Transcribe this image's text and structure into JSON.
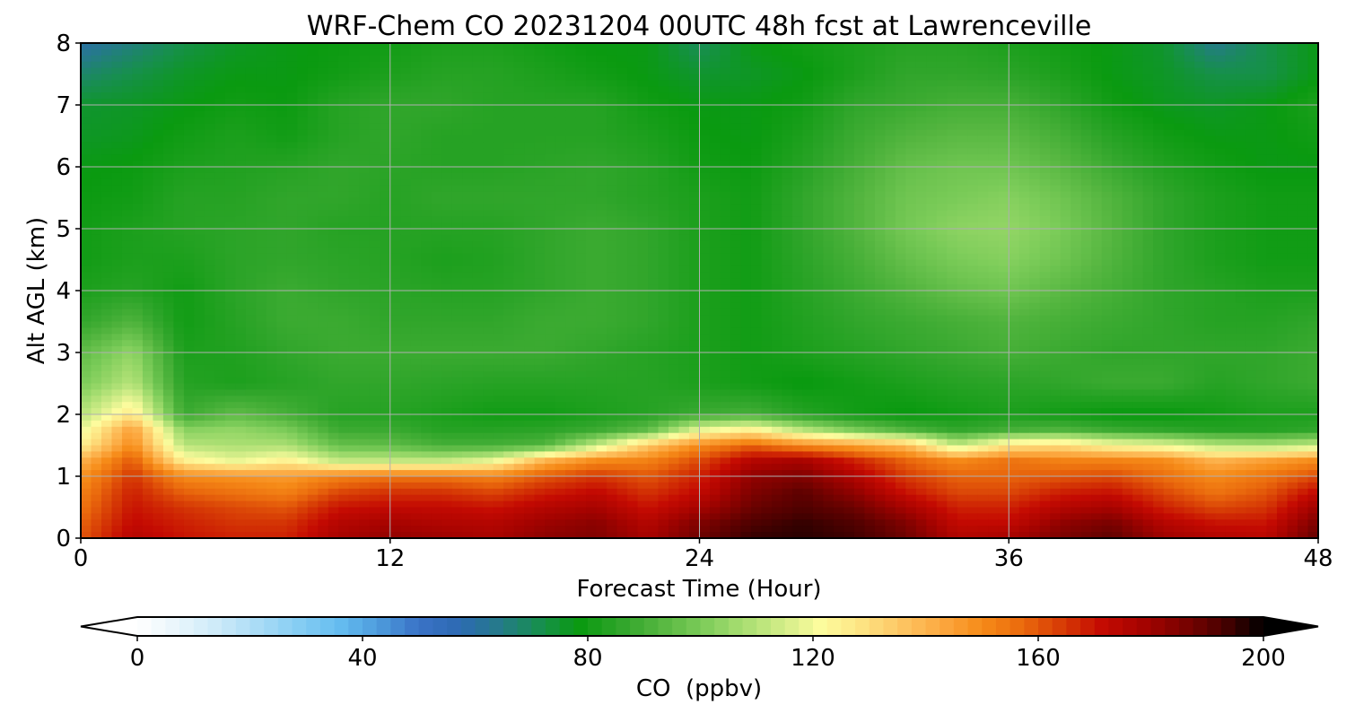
{
  "chart_data": {
    "type": "heatmap",
    "title": "WRF-Chem CO  20231204 00UTC 48h fcst at Lawrenceville",
    "xlabel": "Forecast Time (Hour)",
    "ylabel": "Alt AGL (km)",
    "xlim": [
      0,
      48
    ],
    "ylim": [
      0,
      8
    ],
    "x_ticks": [
      0,
      12,
      24,
      36,
      48
    ],
    "y_ticks": [
      0,
      1,
      2,
      3,
      4,
      5,
      6,
      7,
      8
    ],
    "grid": true,
    "x": [
      0,
      2,
      4,
      6,
      8,
      10,
      12,
      14,
      16,
      18,
      20,
      22,
      24,
      26,
      28,
      30,
      32,
      34,
      36,
      38,
      40,
      42,
      44,
      46,
      48
    ],
    "y": [
      0,
      0.25,
      0.5,
      0.75,
      1,
      1.25,
      1.5,
      1.75,
      2,
      2.5,
      3,
      3.5,
      4,
      4.5,
      5,
      5.5,
      6,
      6.5,
      7,
      7.5,
      8
    ],
    "z": [
      [
        160,
        175,
        170,
        168,
        168,
        178,
        182,
        180,
        178,
        183,
        185,
        178,
        188,
        195,
        196,
        194,
        188,
        176,
        178,
        186,
        190,
        180,
        176,
        174,
        190
      ],
      [
        158,
        172,
        168,
        165,
        165,
        175,
        178,
        176,
        175,
        180,
        183,
        175,
        185,
        192,
        195,
        192,
        185,
        172,
        172,
        182,
        186,
        175,
        170,
        170,
        186
      ],
      [
        155,
        170,
        165,
        162,
        160,
        170,
        172,
        172,
        170,
        175,
        178,
        170,
        178,
        188,
        192,
        188,
        178,
        168,
        168,
        175,
        178,
        168,
        162,
        165,
        180
      ],
      [
        152,
        168,
        158,
        155,
        152,
        162,
        165,
        165,
        162,
        168,
        172,
        165,
        172,
        185,
        190,
        182,
        170,
        162,
        162,
        168,
        170,
        162,
        155,
        160,
        172
      ],
      [
        148,
        165,
        150,
        148,
        146,
        152,
        155,
        155,
        152,
        160,
        165,
        160,
        168,
        182,
        185,
        176,
        164,
        158,
        158,
        160,
        162,
        156,
        150,
        155,
        162
      ],
      [
        140,
        160,
        125,
        118,
        125,
        112,
        112,
        112,
        118,
        140,
        150,
        152,
        162,
        175,
        178,
        168,
        158,
        150,
        155,
        152,
        152,
        150,
        140,
        145,
        150
      ],
      [
        125,
        150,
        110,
        108,
        108,
        96,
        95,
        90,
        90,
        92,
        112,
        135,
        150,
        158,
        150,
        145,
        138,
        112,
        128,
        130,
        122,
        118,
        110,
        108,
        112
      ],
      [
        118,
        145,
        102,
        104,
        100,
        88,
        88,
        84,
        84,
        85,
        88,
        95,
        118,
        125,
        110,
        100,
        92,
        86,
        90,
        92,
        88,
        86,
        84,
        84,
        86
      ],
      [
        110,
        128,
        88,
        95,
        90,
        84,
        84,
        82,
        80,
        80,
        82,
        84,
        88,
        90,
        84,
        80,
        78,
        80,
        82,
        80,
        78,
        78,
        80,
        82,
        82
      ],
      [
        100,
        110,
        84,
        82,
        84,
        86,
        86,
        85,
        84,
        84,
        84,
        84,
        82,
        80,
        78,
        80,
        82,
        84,
        85,
        86,
        88,
        88,
        84,
        86,
        88
      ],
      [
        95,
        104,
        82,
        83,
        86,
        88,
        88,
        88,
        88,
        88,
        86,
        84,
        82,
        80,
        82,
        84,
        86,
        88,
        90,
        88,
        86,
        86,
        86,
        86,
        88
      ],
      [
        86,
        92,
        80,
        84,
        88,
        88,
        86,
        86,
        86,
        88,
        88,
        86,
        82,
        80,
        83,
        86,
        88,
        90,
        92,
        90,
        88,
        86,
        84,
        84,
        86
      ],
      [
        82,
        84,
        80,
        85,
        88,
        86,
        85,
        84,
        84,
        86,
        88,
        86,
        82,
        80,
        84,
        88,
        92,
        96,
        98,
        94,
        90,
        86,
        84,
        82,
        82
      ],
      [
        80,
        82,
        82,
        85,
        86,
        85,
        84,
        82,
        83,
        86,
        88,
        86,
        82,
        80,
        85,
        90,
        96,
        100,
        102,
        98,
        92,
        86,
        82,
        80,
        80
      ],
      [
        80,
        82,
        84,
        85,
        86,
        84,
        84,
        84,
        84,
        86,
        88,
        86,
        82,
        80,
        86,
        92,
        99,
        103,
        104,
        100,
        93,
        86,
        82,
        80,
        80
      ],
      [
        79,
        80,
        84,
        84,
        86,
        86,
        84,
        86,
        86,
        86,
        86,
        84,
        82,
        80,
        86,
        92,
        98,
        100,
        102,
        98,
        92,
        86,
        82,
        80,
        80
      ],
      [
        78,
        79,
        82,
        83,
        84,
        86,
        85,
        84,
        84,
        85,
        86,
        84,
        80,
        79,
        84,
        90,
        96,
        98,
        98,
        94,
        88,
        83,
        80,
        78,
        78
      ],
      [
        76,
        77,
        80,
        82,
        80,
        84,
        86,
        84,
        84,
        84,
        84,
        82,
        79,
        78,
        82,
        88,
        92,
        94,
        94,
        90,
        84,
        80,
        78,
        78,
        80
      ],
      [
        75,
        76,
        78,
        80,
        79,
        84,
        86,
        86,
        84,
        84,
        84,
        80,
        78,
        78,
        80,
        86,
        88,
        90,
        90,
        86,
        80,
        77,
        76,
        78,
        82
      ],
      [
        68,
        72,
        76,
        78,
        78,
        80,
        82,
        84,
        84,
        82,
        80,
        78,
        75,
        76,
        78,
        82,
        86,
        86,
        85,
        82,
        78,
        76,
        72,
        72,
        78
      ],
      [
        60,
        66,
        72,
        76,
        78,
        79,
        80,
        82,
        82,
        80,
        78,
        78,
        70,
        78,
        80,
        82,
        84,
        84,
        82,
        80,
        78,
        75,
        64,
        72,
        78
      ]
    ],
    "colorbar": {
      "label": "CO  (ppbv)",
      "min": 0,
      "max": 200,
      "ticks": [
        0,
        40,
        80,
        120,
        160,
        200
      ],
      "extend": "both",
      "colors": [
        "#ffffff",
        "#e8f5fc",
        "#cdeaf9",
        "#a9dcf6",
        "#86cdf3",
        "#66bef0",
        "#4d9bdc",
        "#3a72c6",
        "#2d6ab3",
        "#257a8a",
        "#178f4e",
        "#0a9a10",
        "#2fa52a",
        "#55b640",
        "#7acb58",
        "#a6dd70",
        "#d0ec87",
        "#fdfc9e",
        "#fde483",
        "#fdc563",
        "#fca840",
        "#f68b18",
        "#ea6a0d",
        "#d63a05",
        "#c40a02",
        "#a50300",
        "#7c0200",
        "#4a0100",
        "#000000"
      ]
    }
  }
}
